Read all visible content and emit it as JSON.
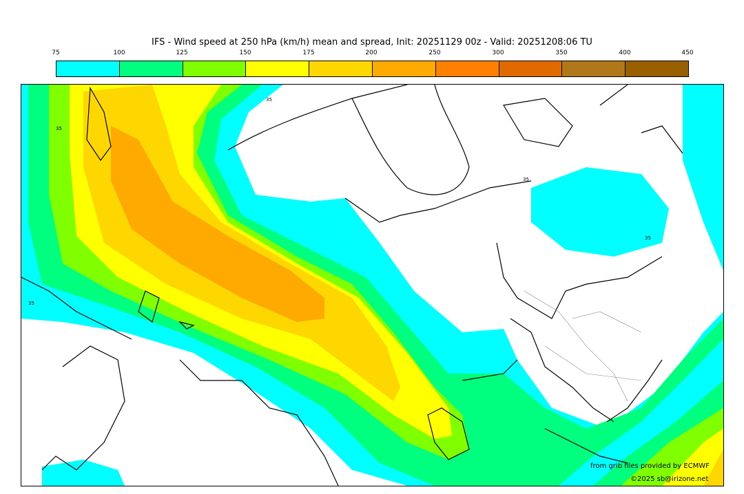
{
  "title": "IFS - Wind speed at 250 hPa (km/h) mean and spread, Init: 20251129 00z - Valid: 20251208:06 TU",
  "colorbar": {
    "ticks": [
      "75",
      "100",
      "125",
      "150",
      "175",
      "200",
      "250",
      "300",
      "350",
      "400",
      "450"
    ],
    "colors": [
      "#00ffff",
      "#00ff7f",
      "#7fff00",
      "#ffff00",
      "#ffd700",
      "#ffaa00",
      "#ff7f00",
      "#e06a00",
      "#b07818",
      "#9a6000"
    ]
  },
  "map": {
    "contour_labels": [
      "35",
      "35",
      "35",
      "35",
      "35"
    ]
  },
  "credits": {
    "source": "from grib files provided by ECMWF",
    "copyright": "©2025 sb@irizone.net"
  }
}
